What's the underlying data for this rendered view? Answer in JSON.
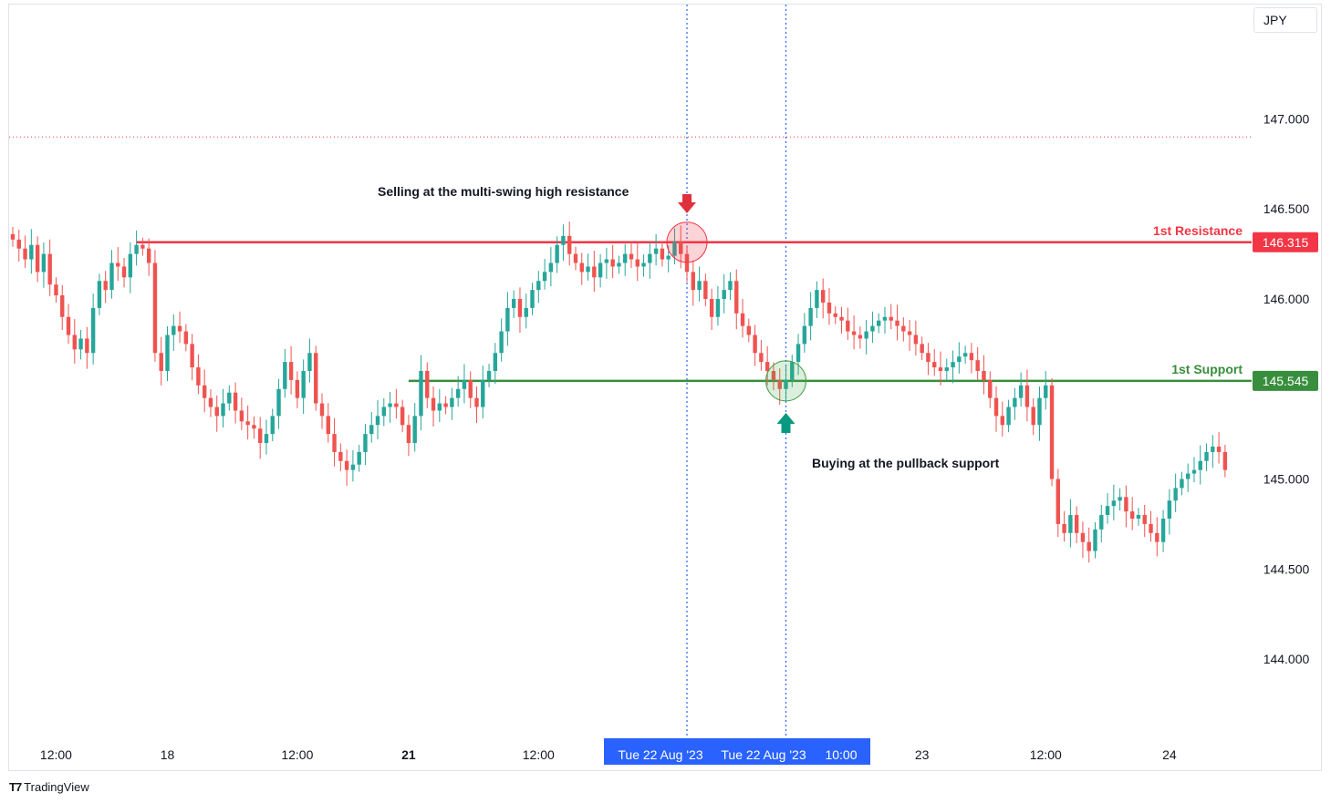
{
  "chart_data": {
    "type": "candlestick",
    "currency": "JPY",
    "y_ticks": [
      "147.000",
      "146.500",
      "146.000",
      "145.000",
      "144.500",
      "144.000"
    ],
    "y_tick_values": [
      147.0,
      146.5,
      146.0,
      145.0,
      144.5,
      144.0
    ],
    "ylim": [
      143.57,
      147.62
    ],
    "x_tick_labels": [
      {
        "label": "12:00",
        "bar": 7,
        "bold": false
      },
      {
        "label": "18",
        "bar": 25,
        "bold": false
      },
      {
        "label": "12:00",
        "bar": 46,
        "bold": false
      },
      {
        "label": "21",
        "bar": 64,
        "bold": true
      },
      {
        "label": "12:00",
        "bar": 85,
        "bold": false
      },
      {
        "label": "23",
        "bar": 147,
        "bold": false
      },
      {
        "label": "12:00",
        "bar": 167,
        "bold": false
      },
      {
        "label": "24",
        "bar": 187,
        "bold": false
      }
    ],
    "crosshair_labels": [
      {
        "label": "Tue 22 Aug '23",
        "bar": 109
      },
      {
        "label": "Tue 22 Aug '23",
        "bar": 125
      },
      {
        "label": "10:00",
        "bar": 134
      }
    ],
    "closes": [
      146.33,
      146.28,
      146.22,
      146.3,
      146.15,
      146.25,
      146.08,
      146.02,
      145.9,
      145.8,
      145.72,
      145.78,
      145.7,
      145.95,
      146.1,
      146.05,
      146.2,
      146.18,
      146.12,
      146.25,
      146.3,
      146.28,
      146.2,
      145.7,
      145.6,
      145.8,
      145.85,
      145.82,
      145.75,
      145.62,
      145.52,
      145.45,
      145.4,
      145.35,
      145.42,
      145.48,
      145.38,
      145.32,
      145.3,
      145.28,
      145.2,
      145.25,
      145.35,
      145.5,
      145.65,
      145.55,
      145.45,
      145.6,
      145.7,
      145.42,
      145.35,
      145.25,
      145.15,
      145.1,
      145.05,
      145.08,
      145.15,
      145.25,
      145.3,
      145.35,
      145.4,
      145.42,
      145.4,
      145.3,
      145.2,
      145.35,
      145.6,
      145.45,
      145.38,
      145.42,
      145.4,
      145.45,
      145.5,
      145.55,
      145.45,
      145.4,
      145.55,
      145.6,
      145.7,
      145.82,
      145.95,
      146.0,
      145.9,
      145.95,
      146.05,
      146.1,
      146.15,
      146.2,
      146.3,
      146.35,
      146.25,
      146.2,
      146.15,
      146.18,
      146.12,
      146.2,
      146.22,
      146.18,
      146.2,
      146.25,
      146.22,
      146.18,
      146.2,
      146.25,
      146.28,
      146.22,
      146.24,
      146.32,
      146.25,
      146.15,
      146.05,
      146.1,
      146.0,
      145.9,
      146.0,
      146.05,
      146.1,
      145.92,
      145.85,
      145.8,
      145.7,
      145.65,
      145.6,
      145.55,
      145.5,
      145.55,
      145.65,
      145.75,
      145.85,
      145.95,
      146.05,
      145.98,
      145.92,
      145.9,
      145.88,
      145.82,
      145.8,
      145.78,
      145.82,
      145.85,
      145.88,
      145.9,
      145.88,
      145.85,
      145.82,
      145.8,
      145.75,
      145.7,
      145.65,
      145.62,
      145.6,
      145.62,
      145.65,
      145.68,
      145.7,
      145.66,
      145.6,
      145.55,
      145.45,
      145.35,
      145.3,
      145.4,
      145.45,
      145.52,
      145.4,
      145.3,
      145.45,
      145.52,
      145.0,
      144.75,
      144.7,
      144.8,
      144.7,
      144.65,
      144.6,
      144.72,
      144.8,
      144.85,
      144.88,
      144.9,
      144.82,
      144.78,
      144.8,
      144.75,
      144.7,
      144.65,
      144.78,
      144.88,
      144.95,
      145.0,
      145.03,
      145.05,
      145.1,
      145.15,
      145.18,
      145.15,
      145.05
    ]
  },
  "levels": {
    "resistance": {
      "label": "1st Resistance",
      "value_label": "146.315",
      "value": 146.315,
      "color": "#f23645",
      "start_bar": 20
    },
    "support": {
      "label": "1st Support",
      "value_label": "145.545",
      "value": 145.545,
      "color": "#388e3c",
      "start_bar": 64
    },
    "dotted_level": 146.9
  },
  "annotations": {
    "sell_text": "Selling at the multi-swing high resistance",
    "buy_text": "Buying at the pullback support"
  },
  "colors": {
    "up": "#26a69a",
    "down": "#ef5350",
    "crosshair": "#2962ff",
    "axis_label_bg": "#2962ff"
  },
  "brand": "TradingView"
}
